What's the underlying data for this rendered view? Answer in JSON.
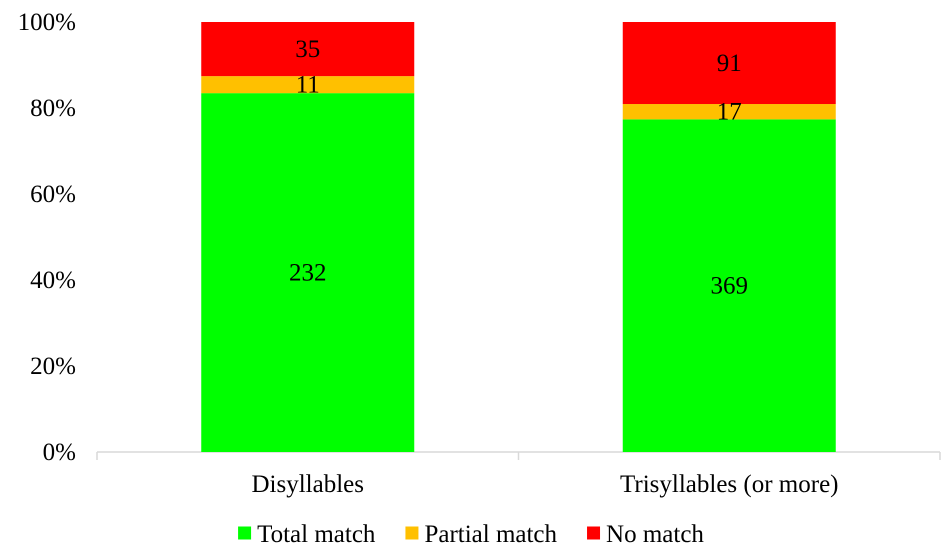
{
  "chart_data": {
    "type": "bar",
    "stacked": true,
    "normalized": true,
    "categories": [
      "Disyllables",
      "Trisyllables (or more)"
    ],
    "series": [
      {
        "name": "Total match",
        "values": [
          232,
          369
        ],
        "color": "#00ff00"
      },
      {
        "name": "Partial match",
        "values": [
          11,
          17
        ],
        "color": "#ffc000"
      },
      {
        "name": "No match",
        "values": [
          35,
          91
        ],
        "color": "#ff0000"
      }
    ],
    "y_ticks": [
      "0%",
      "20%",
      "40%",
      "60%",
      "80%",
      "100%"
    ],
    "ylim": [
      0,
      100
    ],
    "grid": false,
    "legend_position": "bottom"
  }
}
